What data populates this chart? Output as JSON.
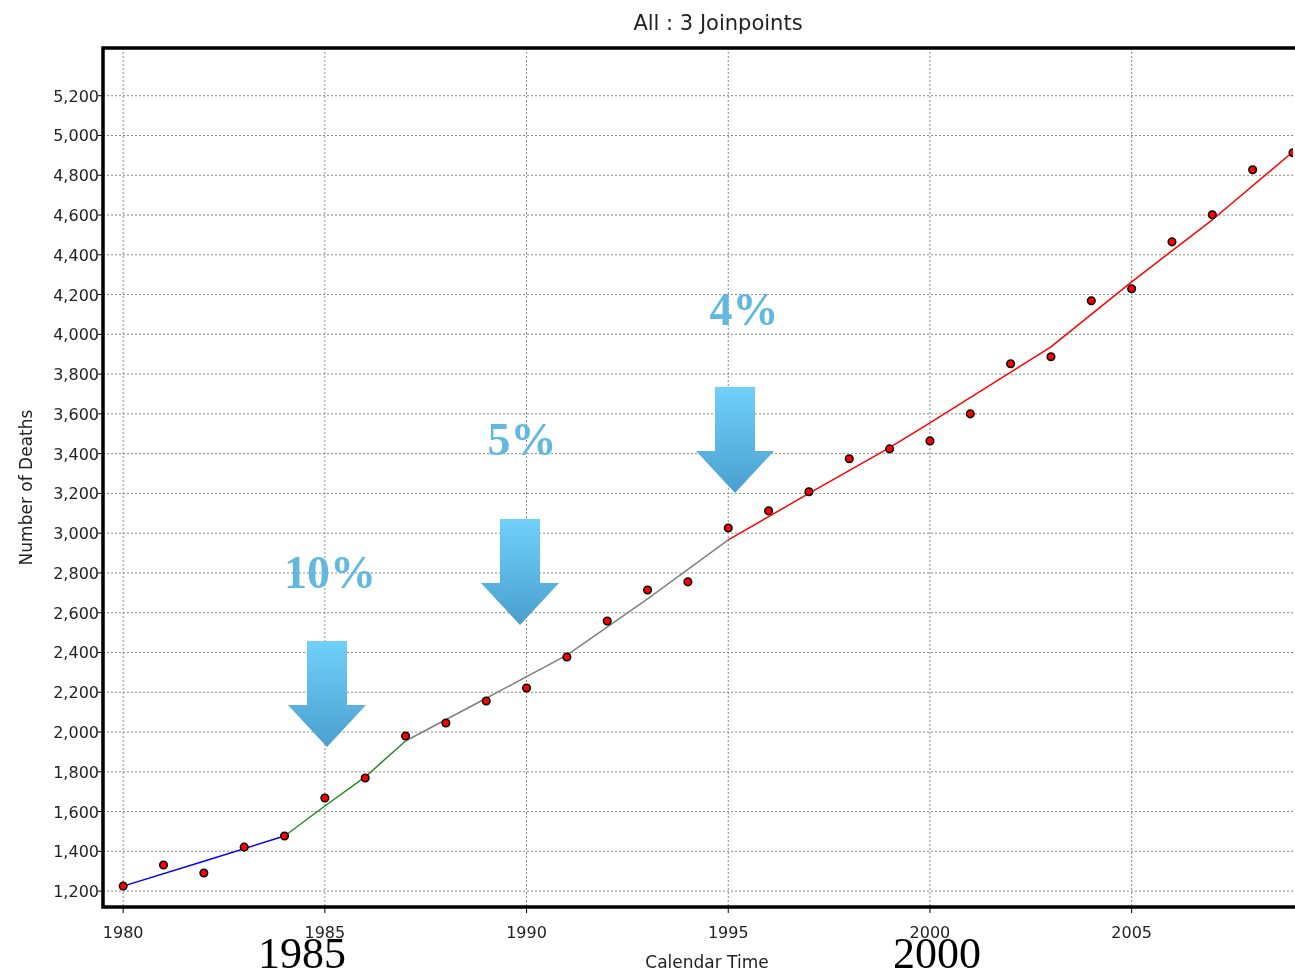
{
  "chart_data": {
    "type": "scatter",
    "title": "All : 3 Joinpoints",
    "xlabel": "Calendar Time",
    "ylabel": "Number of Deaths",
    "x": [
      1980,
      1981,
      1982,
      1983,
      1984,
      1985,
      1986,
      1987,
      1988,
      1989,
      1990,
      1991,
      1992,
      1993,
      1994,
      1995,
      1996,
      1997,
      1998,
      1999,
      2000,
      2001,
      2002,
      2003,
      2004,
      2005,
      2006,
      2007,
      2008,
      2009
    ],
    "series": [
      {
        "color": "#ff0000",
        "marker": "circle",
        "values": [
          1225,
          1331,
          1291,
          1421,
          1477,
          1668,
          1769,
          1980,
          2045,
          2156,
          2221,
          2377,
          2558,
          2714,
          2755,
          3026,
          3112,
          3208,
          3374,
          3424,
          3464,
          3600,
          3852,
          3887,
          4169,
          4229,
          4465,
          4601,
          4828,
          4913
        ]
      },
      {
        "type": "line",
        "color": "#0000ff",
        "x": [
          1980,
          1982,
          1984
        ],
        "values": [
          1225,
          1350,
          1477
        ]
      },
      {
        "type": "line",
        "color": "#228b22",
        "x": [
          1984,
          1985,
          1986,
          1987
        ],
        "values": [
          1477,
          1628,
          1774,
          1955
        ]
      },
      {
        "type": "line",
        "color": "#808080",
        "x": [
          1987,
          1989,
          1991,
          1993,
          1995
        ],
        "values": [
          1955,
          2170,
          2387,
          2670,
          2966
        ]
      },
      {
        "type": "line",
        "color": "#ff0000",
        "x": [
          1995,
          1997,
          1999,
          2000,
          2003,
          2005,
          2007,
          2009
        ],
        "values": [
          2966,
          3200,
          3430,
          3555,
          3937,
          4264,
          4576,
          4918
        ]
      }
    ],
    "xlim": [
      1979.5,
      2009
    ],
    "xticks": [
      1980,
      1985,
      1990,
      1995,
      2000,
      2005
    ],
    "ylim": [
      1120,
      5440
    ],
    "yticks": [
      {
        "value": 1200,
        "label": "1,200"
      },
      {
        "value": 1400,
        "label": "1,400"
      },
      {
        "value": 1600,
        "label": "1,600"
      },
      {
        "value": 1800,
        "label": "1,800"
      },
      {
        "value": 2000,
        "label": "2,000"
      },
      {
        "value": 2200,
        "label": "2,200"
      },
      {
        "value": 2400,
        "label": "2,400"
      },
      {
        "value": 2600,
        "label": "2,600"
      },
      {
        "value": 2800,
        "label": "2,800"
      },
      {
        "value": 3000,
        "label": "3,000"
      },
      {
        "value": 3200,
        "label": "3,200"
      },
      {
        "value": 3400,
        "label": "3,400"
      },
      {
        "value": 3600,
        "label": "3,600"
      },
      {
        "value": 3800,
        "label": "3,800"
      },
      {
        "value": 4000,
        "label": "4,000"
      },
      {
        "value": 4200,
        "label": "4,200"
      },
      {
        "value": 4400,
        "label": "4,400"
      },
      {
        "value": 4600,
        "label": "4,600"
      },
      {
        "value": 4800,
        "label": "4,800"
      },
      {
        "value": 5000,
        "label": "5,000"
      },
      {
        "value": 5200,
        "label": "5,200"
      }
    ],
    "grid": true,
    "annotations": [
      "10%",
      "5%",
      "4%",
      "1985",
      "2000"
    ]
  }
}
